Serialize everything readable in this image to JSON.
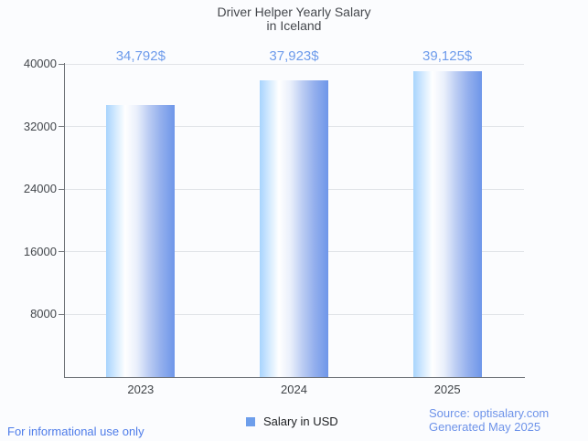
{
  "page": {
    "background": "#fbfcfe"
  },
  "title": {
    "line1": "Driver Helper Yearly Salary",
    "line2": "in Iceland",
    "color": "#45484d"
  },
  "chart_data": {
    "type": "bar",
    "title": "Driver Helper Yearly Salary in Iceland",
    "categories": [
      "2023",
      "2024",
      "2025"
    ],
    "series": [
      {
        "name": "Salary in USD",
        "values": [
          34792,
          37923,
          39125
        ]
      }
    ],
    "value_labels": [
      "34,792$",
      "37,923$",
      "39,125$"
    ],
    "value_label_color": "#6d9beb",
    "xlabel": "",
    "ylabel": "",
    "ylim": [
      0,
      40000
    ],
    "yticks": [
      8000,
      16000,
      24000,
      32000,
      40000
    ],
    "grid": true,
    "legend_position": "bottom",
    "bar_gradient": [
      [
        "#a8d4fd",
        0
      ],
      [
        "#ffffff",
        28
      ],
      [
        "#e9effb",
        45
      ],
      [
        "#bccdf3",
        62
      ],
      [
        "#93afed",
        80
      ],
      [
        "#6e96e9",
        100
      ]
    ]
  },
  "legend": {
    "label": "Salary in USD",
    "marker_color": "#6d9eeb"
  },
  "footer": {
    "left": "For informational use only",
    "left_color": "#4e7ce9",
    "source_line1": "Source: optisalary.com",
    "source_line2": "Generated May 2025",
    "source_color": "#6e93e9"
  }
}
